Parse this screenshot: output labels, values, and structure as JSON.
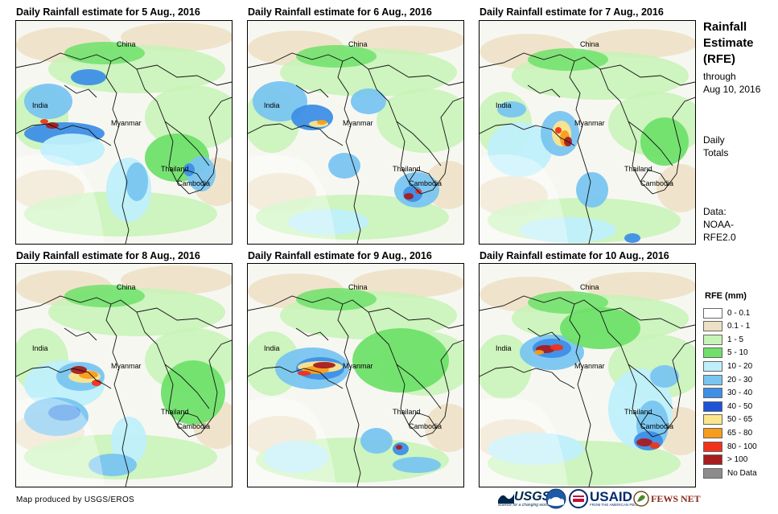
{
  "panels": [
    {
      "title": "Daily Rainfall estimate for 5 Aug., 2016"
    },
    {
      "title": "Daily Rainfall estimate for 6 Aug., 2016"
    },
    {
      "title": "Daily Rainfall estimate for 7 Aug., 2016"
    },
    {
      "title": "Daily Rainfall estimate for 8 Aug., 2016"
    },
    {
      "title": "Daily Rainfall estimate for 9 Aug., 2016"
    },
    {
      "title": "Daily Rainfall estimate for 10 Aug., 2016"
    }
  ],
  "places": {
    "china": "China",
    "india": "India",
    "myanmar": "Myanmar",
    "thailand": "Thailand",
    "cambodia": "Cambodia"
  },
  "sidebar": {
    "title_line1": "Rainfall",
    "title_line2": "Estimate",
    "title_line3": "(RFE)",
    "through_line1": "through",
    "through_line2": "Aug 10, 2016",
    "daily_line1": "Daily",
    "daily_line2": "Totals",
    "data_line1": "Data:",
    "data_line2": "NOAA-",
    "data_line3": "RFE2.0"
  },
  "legend": {
    "title": "RFE (mm)",
    "items": [
      {
        "label": "0 - 0.1",
        "color": "#ffffff"
      },
      {
        "label": "0.1 - 1",
        "color": "#ede0c4"
      },
      {
        "label": "1 - 5",
        "color": "#c7f3b6"
      },
      {
        "label": "5 - 10",
        "color": "#6fe06a"
      },
      {
        "label": "10 - 20",
        "color": "#bfeffb"
      },
      {
        "label": "20 - 30",
        "color": "#79c5f0"
      },
      {
        "label": "30 - 40",
        "color": "#3e8fe6"
      },
      {
        "label": "40 - 50",
        "color": "#1d53d6"
      },
      {
        "label": "50 - 65",
        "color": "#fbe68c"
      },
      {
        "label": "65 - 80",
        "color": "#f79c1c"
      },
      {
        "label": "80 - 100",
        "color": "#f0331a"
      },
      {
        "label": "> 100",
        "color": "#a81c20"
      },
      {
        "label": "No Data",
        "color": "#8c8c8c"
      }
    ]
  },
  "footer": {
    "credit": "Map produced by USGS/EROS",
    "usgs": "USGS",
    "usgs_tagline": "science for a changing world",
    "usaid": "USAID",
    "usaid_tagline": "FROM THE AMERICAN PEOPLE",
    "fews": "FEWS NET"
  }
}
